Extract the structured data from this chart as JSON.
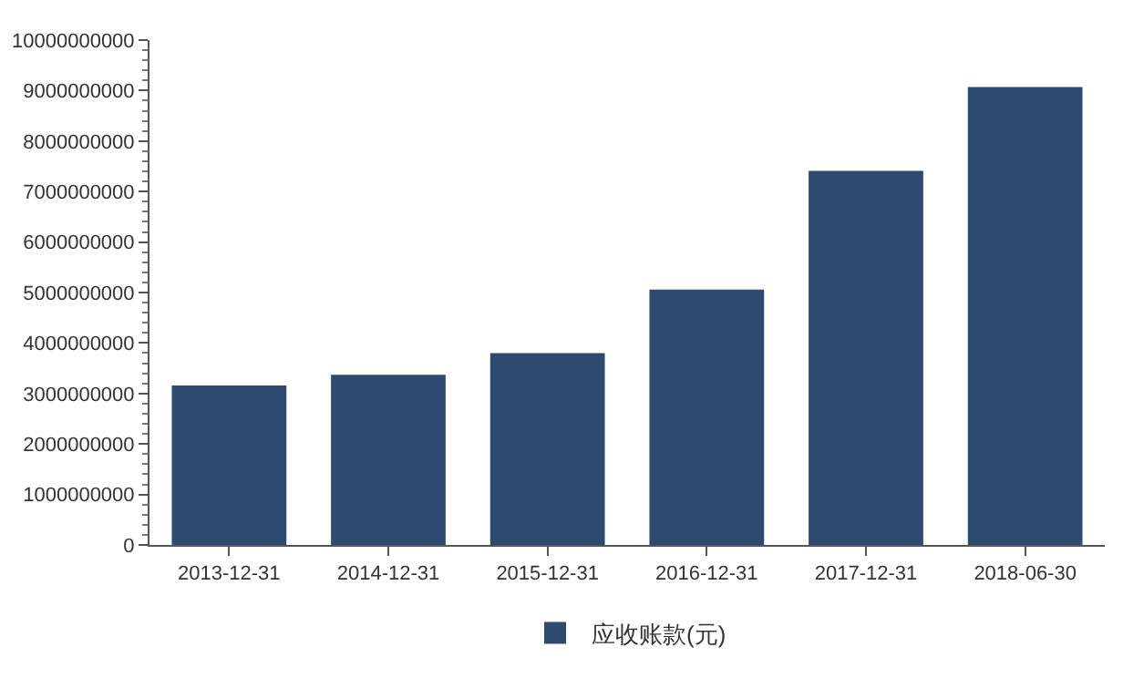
{
  "chart_data": {
    "type": "bar",
    "categories": [
      "2013-12-31",
      "2014-12-31",
      "2015-12-31",
      "2016-12-31",
      "2017-12-31",
      "2018-06-30"
    ],
    "series": [
      {
        "name": "应收账款(元)",
        "color": "#2e4a70",
        "values": [
          3160000000,
          3370000000,
          3800000000,
          5060000000,
          7410000000,
          9070000000
        ]
      }
    ],
    "ylim": [
      0,
      10000000000
    ],
    "yticks": [
      0,
      1000000000,
      2000000000,
      3000000000,
      4000000000,
      5000000000,
      6000000000,
      7000000000,
      8000000000,
      9000000000,
      10000000000
    ],
    "grid": false,
    "legend": "bottom"
  }
}
